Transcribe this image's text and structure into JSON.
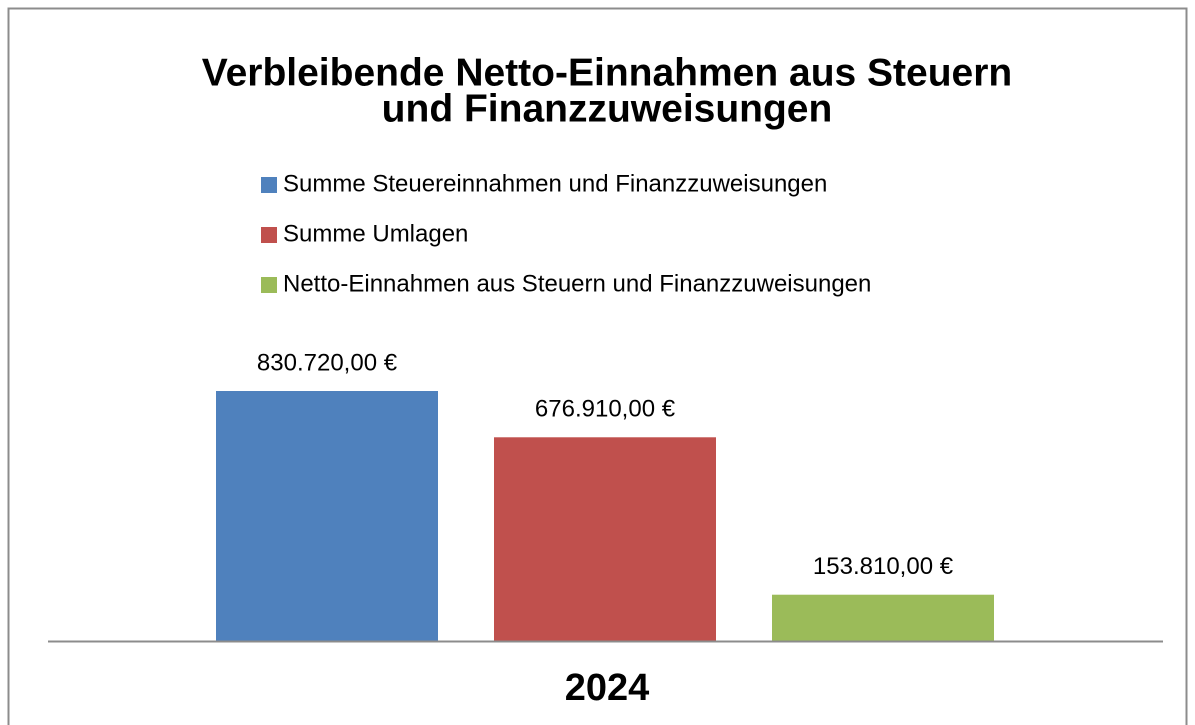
{
  "chart_data": {
    "type": "bar",
    "title": "Verbleibende Netto-Einnahmen aus Steuern und Finanzzuweisungen",
    "title_lines": [
      "Verbleibende Netto-Einnahmen aus Steuern",
      "und Finanzzuweisungen"
    ],
    "categories": [
      "2024"
    ],
    "series": [
      {
        "name": "Summe Steuereinnahmen und Finanzzuweisungen",
        "color": "#4f81bd",
        "values": [
          830720
        ],
        "value_labels": [
          "830.720,00 €"
        ]
      },
      {
        "name": "Summe Umlagen",
        "color": "#c0504d",
        "values": [
          676910
        ],
        "value_labels": [
          "676.910,00 €"
        ]
      },
      {
        "name": "Netto-Einnahmen aus Steuern und Finanzzuweisungen",
        "color": "#9bbb59",
        "values": [
          153810
        ],
        "value_labels": [
          "153.810,00 €"
        ]
      }
    ],
    "legend": "top"
  }
}
